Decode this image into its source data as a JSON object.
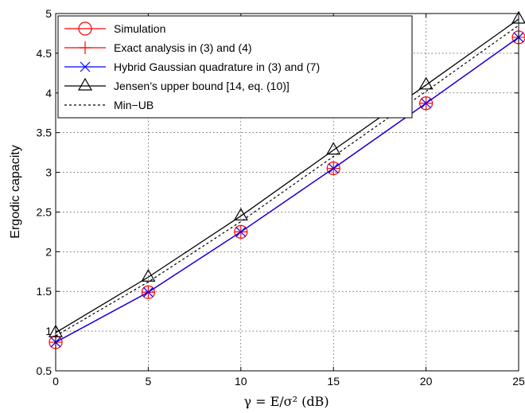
{
  "chart_data": {
    "type": "line",
    "x": [
      0,
      5,
      10,
      15,
      20,
      25
    ],
    "xlabel": "γ = E/σ² (dB)",
    "ylabel": "Ergodic capacity",
    "xlim": [
      0,
      25
    ],
    "ylim": [
      0.5,
      5
    ],
    "xticks": [
      0,
      5,
      10,
      15,
      20,
      25
    ],
    "yticks": [
      0.5,
      1,
      1.5,
      2,
      2.5,
      3,
      3.5,
      4,
      4.5,
      5
    ],
    "xtick_labels": [
      "0",
      "5",
      "10",
      "15",
      "20",
      "25"
    ],
    "ytick_labels": [
      "0.5",
      "1",
      "1.5",
      "2",
      "2.5",
      "3",
      "3.5",
      "4",
      "4.5",
      "5"
    ],
    "grid": true,
    "legend_position": "top-left",
    "series": [
      {
        "name": "Simulation",
        "values": [
          0.86,
          1.49,
          2.25,
          3.05,
          3.87,
          4.7
        ],
        "color": "#ff0000",
        "marker": "circle",
        "line": "solid"
      },
      {
        "name": "Exact analysis in (3) and (4)",
        "values": [
          0.86,
          1.49,
          2.25,
          3.05,
          3.87,
          4.7
        ],
        "color": "#ff0000",
        "marker": "plus",
        "line": "solid"
      },
      {
        "name": "Hybrid Gaussian quadrature in (3) and (7)",
        "values": [
          0.86,
          1.49,
          2.25,
          3.05,
          3.87,
          4.7
        ],
        "color": "#0000ff",
        "marker": "x",
        "line": "solid"
      },
      {
        "name": "Jensen’s upper bound [14, eq. (10)]",
        "values": [
          0.98,
          1.68,
          2.45,
          3.28,
          4.1,
          4.93
        ],
        "color": "#000000",
        "marker": "triangle",
        "line": "solid"
      },
      {
        "name": "Min−UB",
        "values": [
          0.94,
          1.62,
          2.38,
          3.2,
          4.02,
          4.85
        ],
        "color": "#000000",
        "marker": "none",
        "line": "dashed"
      }
    ]
  }
}
